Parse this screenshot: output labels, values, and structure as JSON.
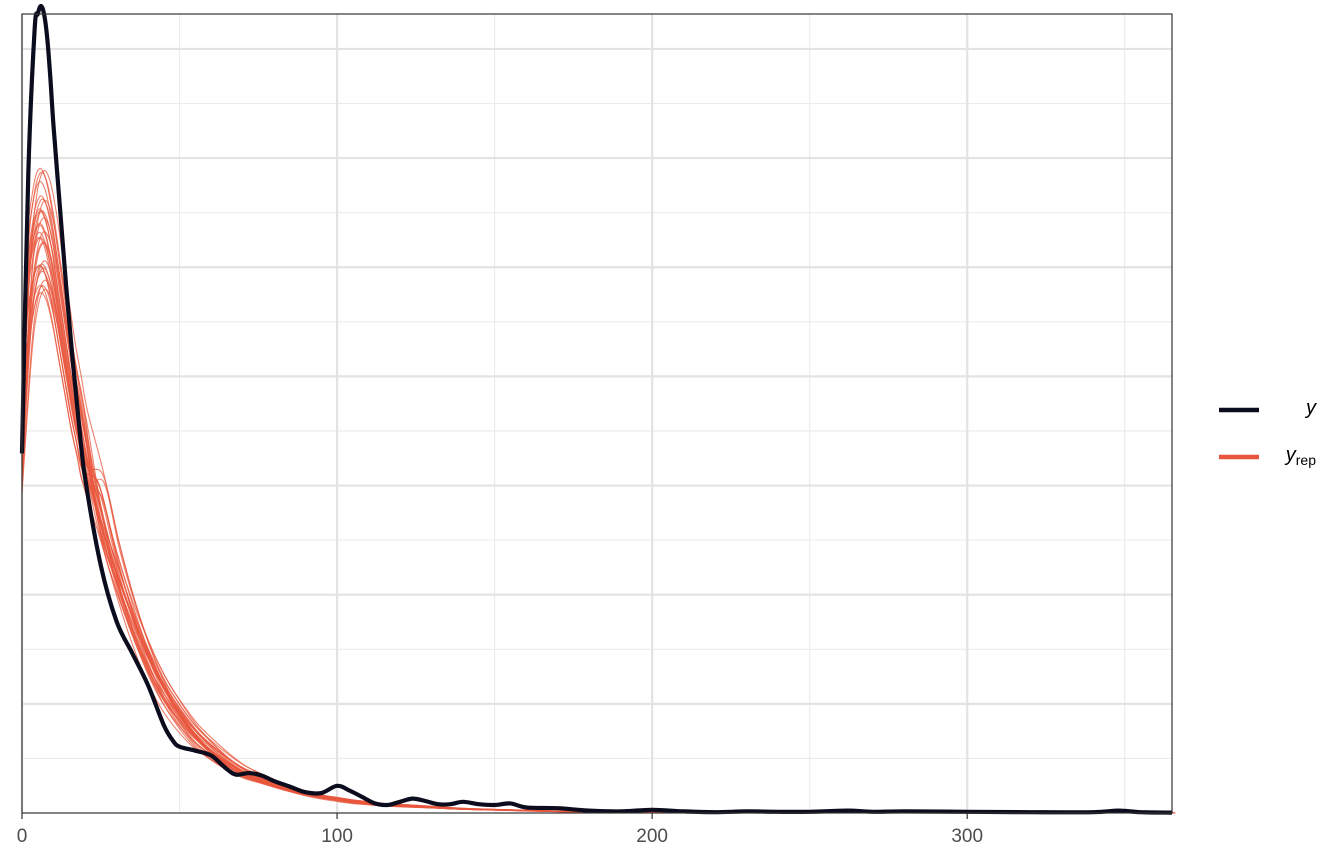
{
  "chart_data": {
    "type": "line",
    "title": "",
    "xlabel": "",
    "ylabel": "",
    "xlim": [
      0,
      365
    ],
    "ylim": [
      0,
      1.0
    ],
    "x_ticks": [
      0,
      100,
      200,
      300
    ],
    "x_tick_labels": [
      "0",
      "100",
      "200",
      "300"
    ],
    "y_ticks_shown": false,
    "grid": true,
    "legend_position": "right",
    "legend": [
      {
        "key": "y",
        "label": "y",
        "subscript": "",
        "color": "#0b0c1e"
      },
      {
        "key": "yrep",
        "label": "y",
        "subscript": "rep",
        "color": "#e8573d"
      }
    ],
    "series": [
      {
        "name": "y",
        "color": "#0b0c1e",
        "x": [
          0,
          2,
          4,
          5,
          6,
          7,
          8,
          9,
          10,
          12,
          14,
          16,
          18,
          20,
          25,
          30,
          35,
          40,
          45,
          48,
          50,
          55,
          60,
          65,
          68,
          72,
          76,
          80,
          85,
          90,
          95,
          100,
          104,
          108,
          112,
          116,
          120,
          124,
          128,
          132,
          136,
          140,
          145,
          150,
          155,
          160,
          170,
          180,
          190,
          200,
          210,
          220,
          230,
          240,
          250,
          262,
          270,
          280,
          300,
          320,
          340,
          348,
          355,
          365
        ],
        "y": [
          0.45,
          0.8,
          0.98,
          1.0,
          1.01,
          1.0,
          0.97,
          0.92,
          0.86,
          0.76,
          0.66,
          0.57,
          0.49,
          0.42,
          0.31,
          0.24,
          0.2,
          0.16,
          0.11,
          0.09,
          0.083,
          0.078,
          0.072,
          0.055,
          0.048,
          0.05,
          0.047,
          0.04,
          0.033,
          0.026,
          0.025,
          0.034,
          0.028,
          0.02,
          0.012,
          0.01,
          0.014,
          0.018,
          0.015,
          0.011,
          0.011,
          0.014,
          0.011,
          0.01,
          0.012,
          0.007,
          0.006,
          0.003,
          0.002,
          0.004,
          0.002,
          0.001,
          0.002,
          0.0015,
          0.0015,
          0.003,
          0.0015,
          0.002,
          0.0015,
          0.001,
          0.001,
          0.003,
          0.001,
          0.0005
        ]
      }
    ],
    "replicates": {
      "name": "yrep",
      "color": "#e8573d",
      "count": 30,
      "x": [
        0,
        2,
        4,
        6,
        8,
        10,
        12,
        14,
        16,
        18,
        20,
        25,
        30,
        35,
        40,
        45,
        50,
        55,
        60,
        65,
        70,
        75,
        80,
        85,
        90,
        95,
        100,
        105,
        110,
        115,
        120,
        125,
        130,
        140,
        150,
        160,
        170,
        180,
        200,
        230,
        260,
        300,
        365
      ],
      "y": [
        0.45,
        0.64,
        0.71,
        0.735,
        0.725,
        0.69,
        0.64,
        0.59,
        0.54,
        0.5,
        0.46,
        0.37,
        0.3,
        0.24,
        0.19,
        0.15,
        0.12,
        0.095,
        0.077,
        0.062,
        0.05,
        0.042,
        0.035,
        0.029,
        0.024,
        0.02,
        0.017,
        0.014,
        0.012,
        0.01,
        0.009,
        0.008,
        0.007,
        0.005,
        0.004,
        0.003,
        0.002,
        0.0015,
        0.001,
        0.0006,
        0.0004,
        0.0002,
        0.0001
      ]
    }
  }
}
